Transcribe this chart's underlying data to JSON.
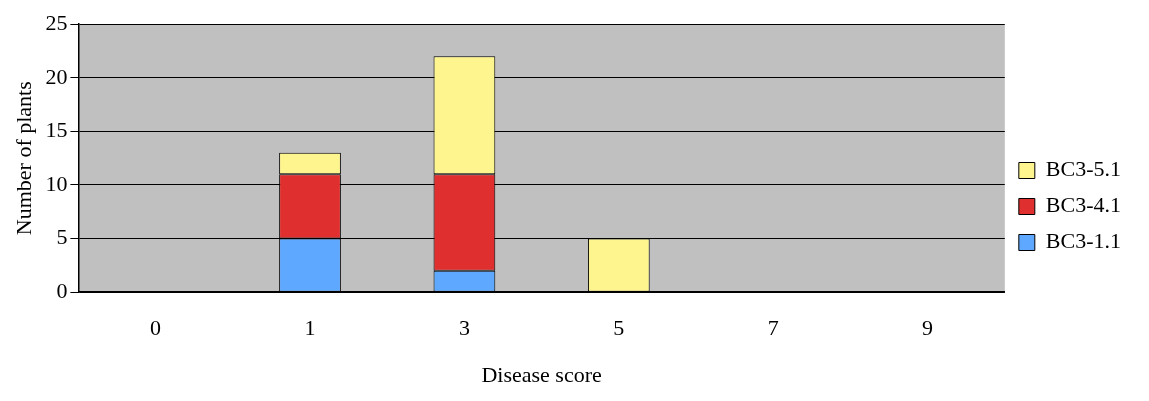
{
  "chart_data": {
    "type": "bar",
    "xlabel": "Disease score",
    "ylabel": "Number of plants",
    "categories": [
      "0",
      "1",
      "3",
      "5",
      "7",
      "9"
    ],
    "stacked": true,
    "series": [
      {
        "name": "BC3-1.1",
        "color": "#5fa8ff",
        "values": [
          0,
          5,
          2,
          0,
          0,
          0
        ]
      },
      {
        "name": "BC3-4.1",
        "color": "#e02f2f",
        "values": [
          0,
          6,
          9,
          0,
          0,
          0
        ]
      },
      {
        "name": "BC3-5.1",
        "color": "#fff58f",
        "values": [
          0,
          2,
          11,
          5,
          0,
          0
        ]
      }
    ],
    "ylim": [
      0,
      25
    ],
    "yticks": [
      0,
      5,
      10,
      15,
      20,
      25
    ],
    "grid": "y",
    "legend": "right"
  }
}
